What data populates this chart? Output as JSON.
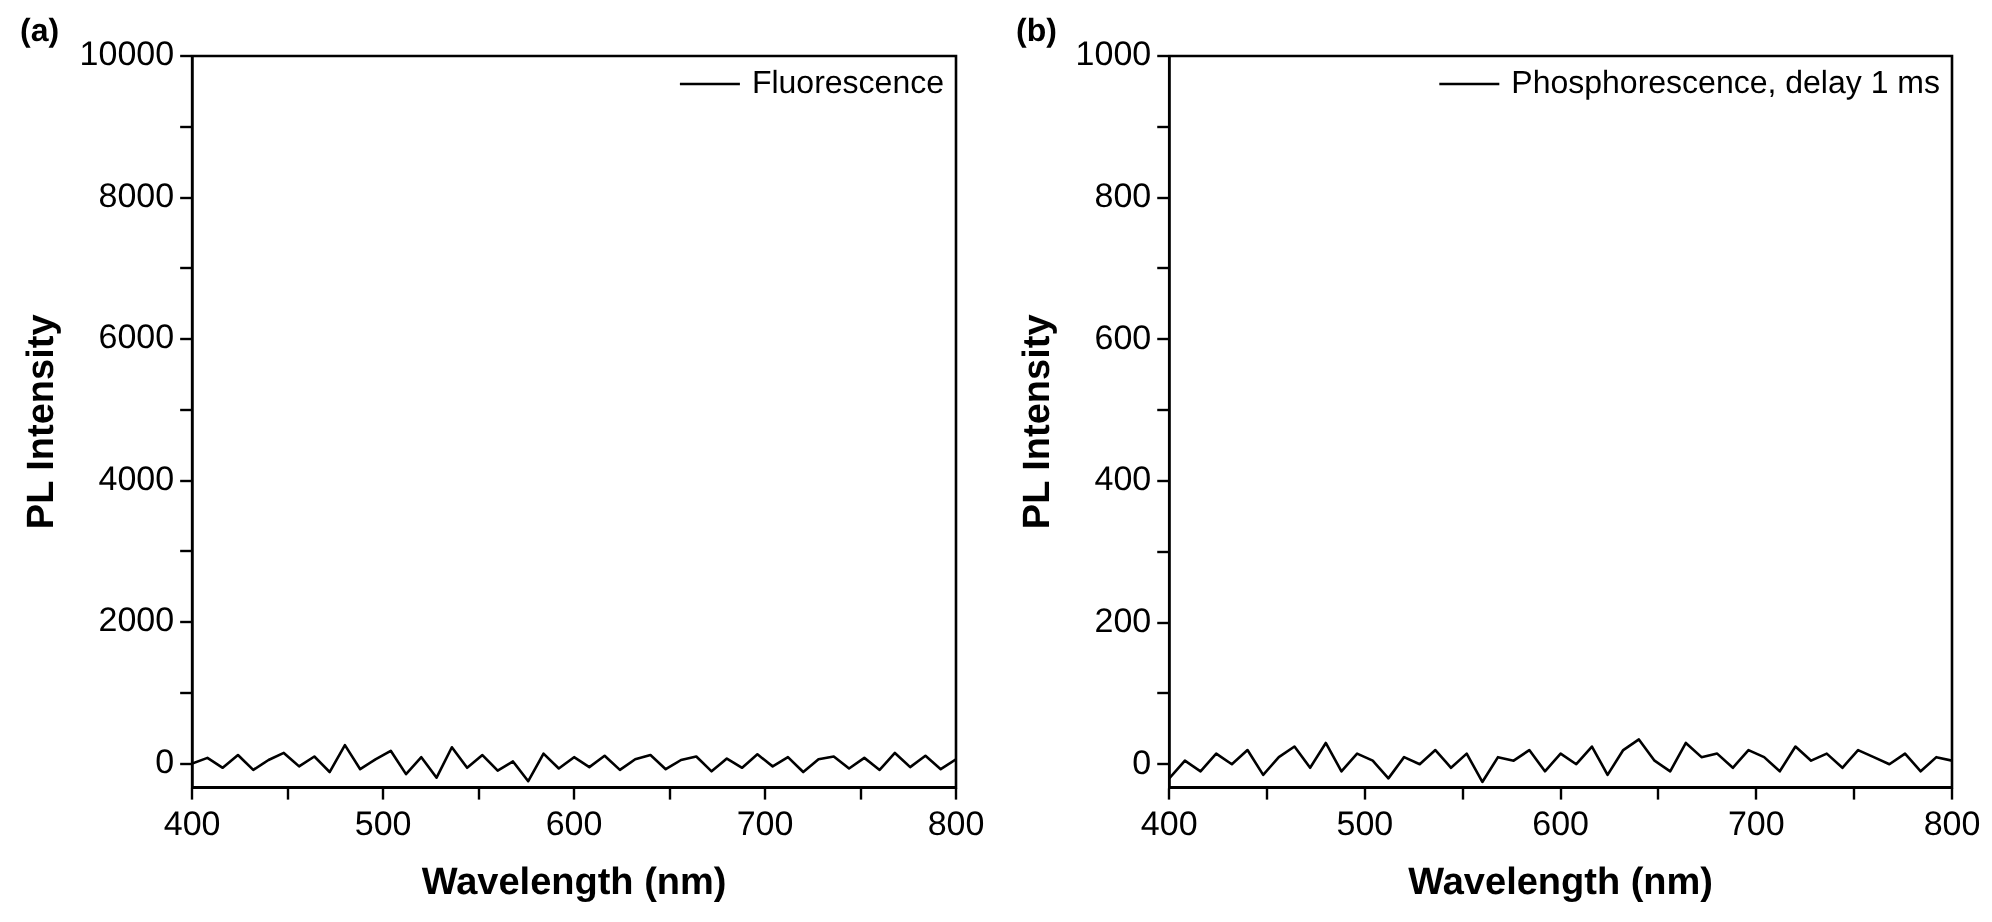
{
  "chart_data": [
    {
      "type": "line",
      "annotations": [
        "(a)"
      ],
      "xlabel": "Wavelength (nm)",
      "ylabel": "PL Intensity",
      "legend": "top right",
      "grid": false,
      "marker": "none",
      "line_style": "solid",
      "xlim": [
        400,
        800
      ],
      "xticks": [
        400,
        {
          "value": 450,
          "label": null
        },
        500,
        {
          "value": 550,
          "label": null
        },
        600,
        {
          "value": 650,
          "label": null
        },
        700,
        {
          "value": 750,
          "label": null
        },
        800
      ],
      "ylim": [
        -340,
        10000
      ],
      "yticks": [
        0,
        {
          "value": 1000,
          "label": null
        },
        2000,
        {
          "value": 3000,
          "label": null
        },
        4000,
        {
          "value": 5000,
          "label": null
        },
        6000,
        {
          "value": 7000,
          "label": null
        },
        8000,
        {
          "value": 9000,
          "label": null
        },
        10000
      ],
      "x": [
        400,
        408,
        416,
        424,
        432,
        440,
        448,
        456,
        464,
        472,
        480,
        488,
        496,
        504,
        512,
        520,
        528,
        536,
        544,
        552,
        560,
        568,
        576,
        584,
        592,
        600,
        608,
        616,
        624,
        632,
        640,
        648,
        656,
        664,
        672,
        680,
        688,
        696,
        704,
        712,
        720,
        728,
        736,
        744,
        752,
        760,
        768,
        776,
        784,
        792,
        800
      ],
      "series": [
        {
          "name": "Fluorescence",
          "color": "#000000",
          "values": [
            0,
            80,
            -60,
            120,
            -90,
            50,
            150,
            -40,
            100,
            -120,
            260,
            -80,
            60,
            180,
            -150,
            90,
            -200,
            230,
            -60,
            120,
            -100,
            30,
            -250,
            140,
            -70,
            90,
            -50,
            110,
            -90,
            60,
            120,
            -80,
            50,
            100,
            -110,
            70,
            -60,
            130,
            -40,
            90,
            -120,
            60,
            100,
            -70,
            80,
            -90,
            150,
            -50,
            110,
            -80,
            60
          ]
        }
      ]
    },
    {
      "type": "line",
      "annotations": [
        "(b)"
      ],
      "xlabel": "Wavelength (nm)",
      "ylabel": "PL Intensity",
      "legend": "top right",
      "grid": false,
      "marker": "none",
      "line_style": "solid",
      "xlim": [
        400,
        800
      ],
      "xticks": [
        400,
        {
          "value": 450,
          "label": null
        },
        500,
        {
          "value": 550,
          "label": null
        },
        600,
        {
          "value": 650,
          "label": null
        },
        700,
        {
          "value": 750,
          "label": null
        },
        800
      ],
      "ylim": [
        -33,
        1000
      ],
      "yticks": [
        0,
        {
          "value": 100,
          "label": null
        },
        200,
        {
          "value": 300,
          "label": null
        },
        400,
        {
          "value": 500,
          "label": null
        },
        600,
        {
          "value": 700,
          "label": null
        },
        800,
        {
          "value": 900,
          "label": null
        },
        1000
      ],
      "x": [
        400,
        408,
        416,
        424,
        432,
        440,
        448,
        456,
        464,
        472,
        480,
        488,
        496,
        504,
        512,
        520,
        528,
        536,
        544,
        552,
        560,
        568,
        576,
        584,
        592,
        600,
        608,
        616,
        624,
        632,
        640,
        648,
        656,
        664,
        672,
        680,
        688,
        696,
        704,
        712,
        720,
        728,
        736,
        744,
        752,
        760,
        768,
        776,
        784,
        792,
        800
      ],
      "series": [
        {
          "name": "Phosphorescence, delay 1 ms",
          "color": "#000000",
          "values": [
            -20,
            5,
            -10,
            15,
            0,
            20,
            -15,
            10,
            25,
            -5,
            30,
            -10,
            15,
            5,
            -20,
            10,
            0,
            20,
            -5,
            15,
            -25,
            10,
            5,
            20,
            -10,
            15,
            0,
            25,
            -15,
            20,
            35,
            5,
            -10,
            30,
            10,
            15,
            -5,
            20,
            10,
            -10,
            25,
            5,
            15,
            -5,
            20,
            10,
            0,
            15,
            -10,
            10,
            5
          ]
        }
      ]
    }
  ]
}
